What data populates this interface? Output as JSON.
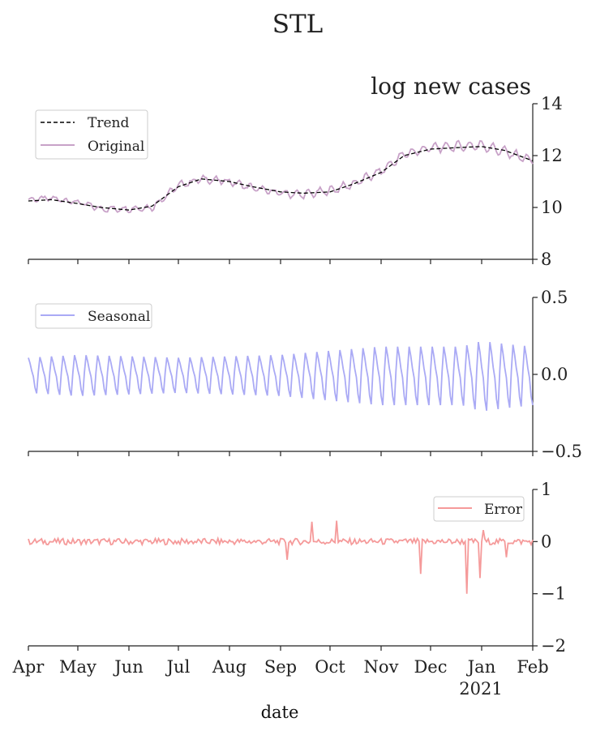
{
  "figure_title": "STL",
  "chart_data": [
    {
      "type": "line",
      "panel": "trend",
      "ylabel": "log new cases",
      "ylim": [
        8,
        14
      ],
      "yticks": [
        "8",
        "10",
        "12",
        "14"
      ],
      "legend_position": "upper-left",
      "series": [
        {
          "name": "Trend",
          "color": "#000000",
          "style": "dashed",
          "x": [
            "2020-04-01",
            "2020-04-15",
            "2020-05-01",
            "2020-05-15",
            "2020-06-01",
            "2020-06-15",
            "2020-07-01",
            "2020-07-15",
            "2020-08-01",
            "2020-08-15",
            "2020-09-01",
            "2020-09-15",
            "2020-10-01",
            "2020-10-15",
            "2020-11-01",
            "2020-11-15",
            "2020-12-01",
            "2020-12-15",
            "2021-01-01",
            "2021-01-15",
            "2021-02-01"
          ],
          "values": [
            10.25,
            10.3,
            10.15,
            10.0,
            9.9,
            10.05,
            10.8,
            11.1,
            11.0,
            10.8,
            10.6,
            10.55,
            10.6,
            10.9,
            11.35,
            12.0,
            12.25,
            12.3,
            12.35,
            12.2,
            11.8
          ]
        },
        {
          "name": "Original",
          "color": "#c8a2c8",
          "style": "solid",
          "x": [
            "2020-04-01",
            "2020-04-15",
            "2020-05-01",
            "2020-05-15",
            "2020-06-01",
            "2020-06-15",
            "2020-07-01",
            "2020-07-15",
            "2020-08-01",
            "2020-08-15",
            "2020-09-01",
            "2020-09-15",
            "2020-10-01",
            "2020-10-15",
            "2020-11-01",
            "2020-11-15",
            "2020-12-01",
            "2020-12-15",
            "2021-01-01",
            "2021-01-15",
            "2021-02-01"
          ],
          "values": [
            10.3,
            10.35,
            10.2,
            9.95,
            9.95,
            10.0,
            10.85,
            11.1,
            11.0,
            10.75,
            10.55,
            10.5,
            10.65,
            10.9,
            11.4,
            12.05,
            12.3,
            12.35,
            12.4,
            12.15,
            11.8
          ]
        }
      ]
    },
    {
      "type": "line",
      "panel": "seasonal",
      "ylim": [
        -0.5,
        0.5
      ],
      "yticks": [
        "−0.5",
        "0.0",
        "0.5"
      ],
      "legend_position": "upper-left",
      "series": [
        {
          "name": "Seasonal",
          "color": "#aaaaf5",
          "weekly_amplitude": [
            0.12,
            0.14,
            0.13,
            0.12,
            0.13,
            0.14,
            0.17,
            0.2,
            0.2,
            0.2,
            0.24,
            0.22,
            0.2
          ],
          "amplitude_dates": [
            "2020-04-01",
            "2020-05-01",
            "2020-06-01",
            "2020-07-01",
            "2020-08-01",
            "2020-09-01",
            "2020-10-01",
            "2020-11-01",
            "2020-12-01",
            "2020-12-20",
            "2021-01-01",
            "2021-01-15",
            "2021-02-01"
          ]
        }
      ]
    },
    {
      "type": "line",
      "panel": "residual",
      "ylim": [
        -2,
        1
      ],
      "yticks": [
        "−2",
        "−1",
        "0",
        "1"
      ],
      "legend_position": "upper-right",
      "series": [
        {
          "name": "Error",
          "color": "#f59a9a",
          "spikes": [
            {
              "date": "2020-09-20",
              "value": 0.38
            },
            {
              "date": "2020-10-05",
              "value": 0.4
            },
            {
              "date": "2020-09-05",
              "value": -0.35
            },
            {
              "date": "2020-11-25",
              "value": -0.62
            },
            {
              "date": "2020-12-23",
              "value": -1.0
            },
            {
              "date": "2020-12-31",
              "value": -0.7
            },
            {
              "date": "2021-01-02",
              "value": 0.22
            },
            {
              "date": "2021-01-16",
              "value": -0.3
            }
          ]
        }
      ]
    }
  ],
  "x_axis": {
    "label": "date",
    "tick_labels": [
      "Apr",
      "May",
      "Jun",
      "Jul",
      "Aug",
      "Sep",
      "Oct",
      "Nov",
      "Dec",
      "Jan",
      "Feb"
    ],
    "tick_dates": [
      "2020-04-01",
      "2020-05-01",
      "2020-06-01",
      "2020-07-01",
      "2020-08-01",
      "2020-09-01",
      "2020-10-01",
      "2020-11-01",
      "2020-12-01",
      "2021-01-01",
      "2021-02-01"
    ],
    "year_label": "2021",
    "range": [
      "2020-04-01",
      "2021-02-01"
    ]
  }
}
